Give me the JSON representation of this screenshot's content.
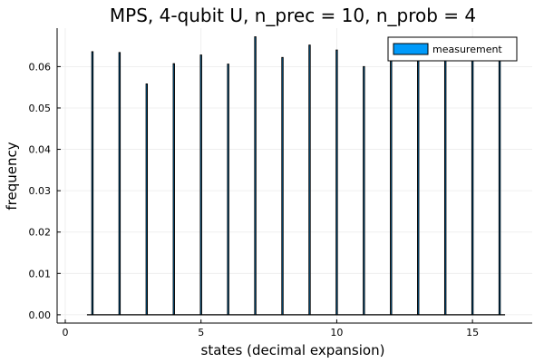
{
  "chart_data": {
    "type": "bar",
    "title": "MPS, 4-qubit U, n_prec = 10, n_prob = 4",
    "xlabel": "states (decimal expansion)",
    "ylabel": "frequency",
    "legend": {
      "entries": [
        "measurement"
      ],
      "placement": "top-right"
    },
    "grid": true,
    "xlim": [
      -0.3,
      17.2
    ],
    "ylim": [
      -0.002,
      0.0693
    ],
    "xticks": [
      0,
      5,
      10,
      15
    ],
    "yticks": [
      0.0,
      0.01,
      0.02,
      0.03,
      0.04,
      0.05,
      0.06
    ],
    "ytick_labels": [
      "0.00",
      "0.01",
      "0.02",
      "0.03",
      "0.04",
      "0.05",
      "0.06"
    ],
    "x": [
      1,
      2,
      3,
      4,
      5,
      6,
      7,
      8,
      9,
      10,
      11,
      12,
      13,
      14,
      15,
      16
    ],
    "values": [
      0.0636,
      0.0634,
      0.0558,
      0.0607,
      0.0628,
      0.0606,
      0.0672,
      0.0622,
      0.0652,
      0.064,
      0.06,
      0.0636,
      0.0636,
      0.0636,
      0.0636,
      0.0636
    ],
    "baseline_range": [
      0.8,
      16.2
    ],
    "colors": {
      "bar_fill": "#009AFA",
      "bar_edge": "#000000",
      "grid": "#EBEBEB"
    }
  }
}
